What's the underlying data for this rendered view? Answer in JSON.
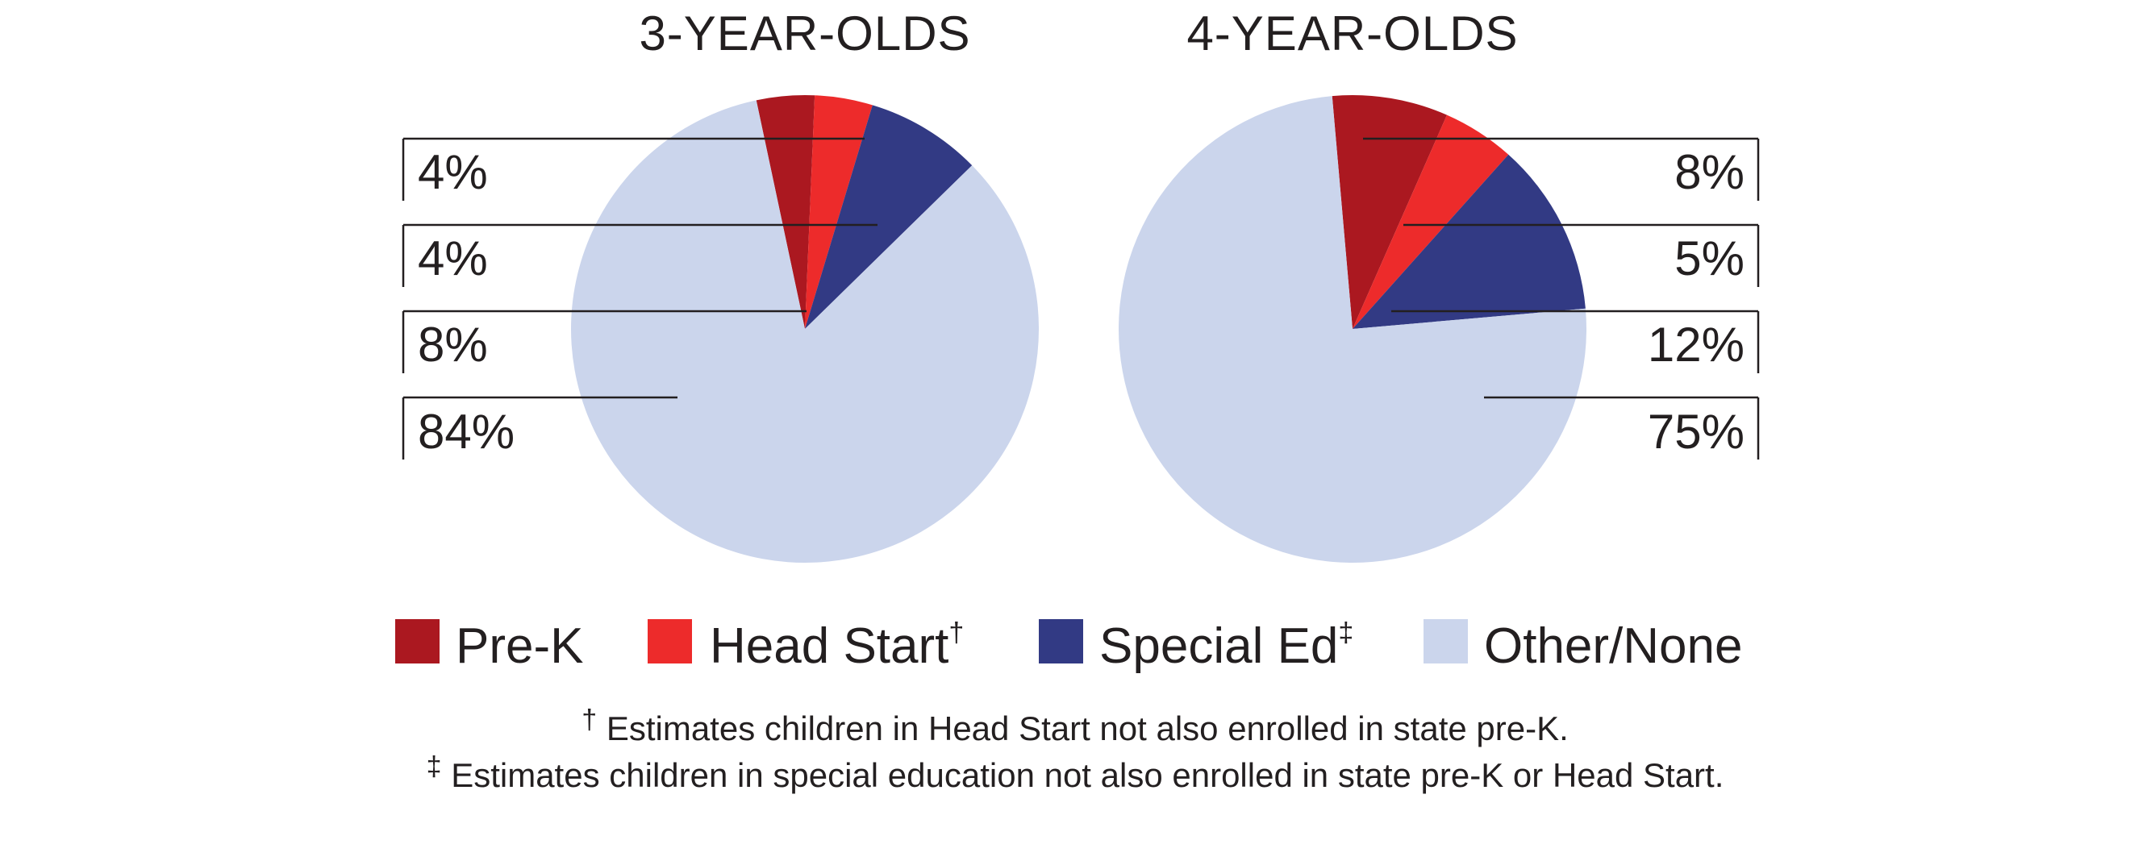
{
  "colors": {
    "pre_k": "#ab1820",
    "head_start": "#ed2b2b",
    "special_ed": "#323a84",
    "other": "#cbd5ec",
    "line": "#231f20"
  },
  "chart_data": [
    {
      "type": "pie",
      "title": "3-YEAR-OLDS",
      "labels": [
        "Pre-K",
        "Head Start",
        "Special Ed",
        "Other/None"
      ],
      "values": [
        4,
        4,
        8,
        84
      ],
      "value_labels": [
        "4%",
        "4%",
        "8%",
        "84%"
      ]
    },
    {
      "type": "pie",
      "title": "4-YEAR-OLDS",
      "labels": [
        "Pre-K",
        "Head Start",
        "Special Ed",
        "Other/None"
      ],
      "values": [
        8,
        5,
        12,
        75
      ],
      "value_labels": [
        "8%",
        "5%",
        "12%",
        "75%"
      ]
    }
  ],
  "legend": {
    "items": [
      {
        "label": "Pre-K",
        "mark": "",
        "color_key": "pre_k"
      },
      {
        "label": "Head Start",
        "mark": "†",
        "color_key": "head_start"
      },
      {
        "label": "Special Ed",
        "mark": "‡",
        "color_key": "special_ed"
      },
      {
        "label": "Other/None",
        "mark": "",
        "color_key": "other"
      }
    ]
  },
  "footnotes": {
    "dagger_mark": "†",
    "dagger": " Estimates children in Head Start not also enrolled in state pre-K.",
    "double_dagger_mark": "‡",
    "double_dagger": " Estimates children in special education not also enrolled in state pre-K or Head Start."
  }
}
